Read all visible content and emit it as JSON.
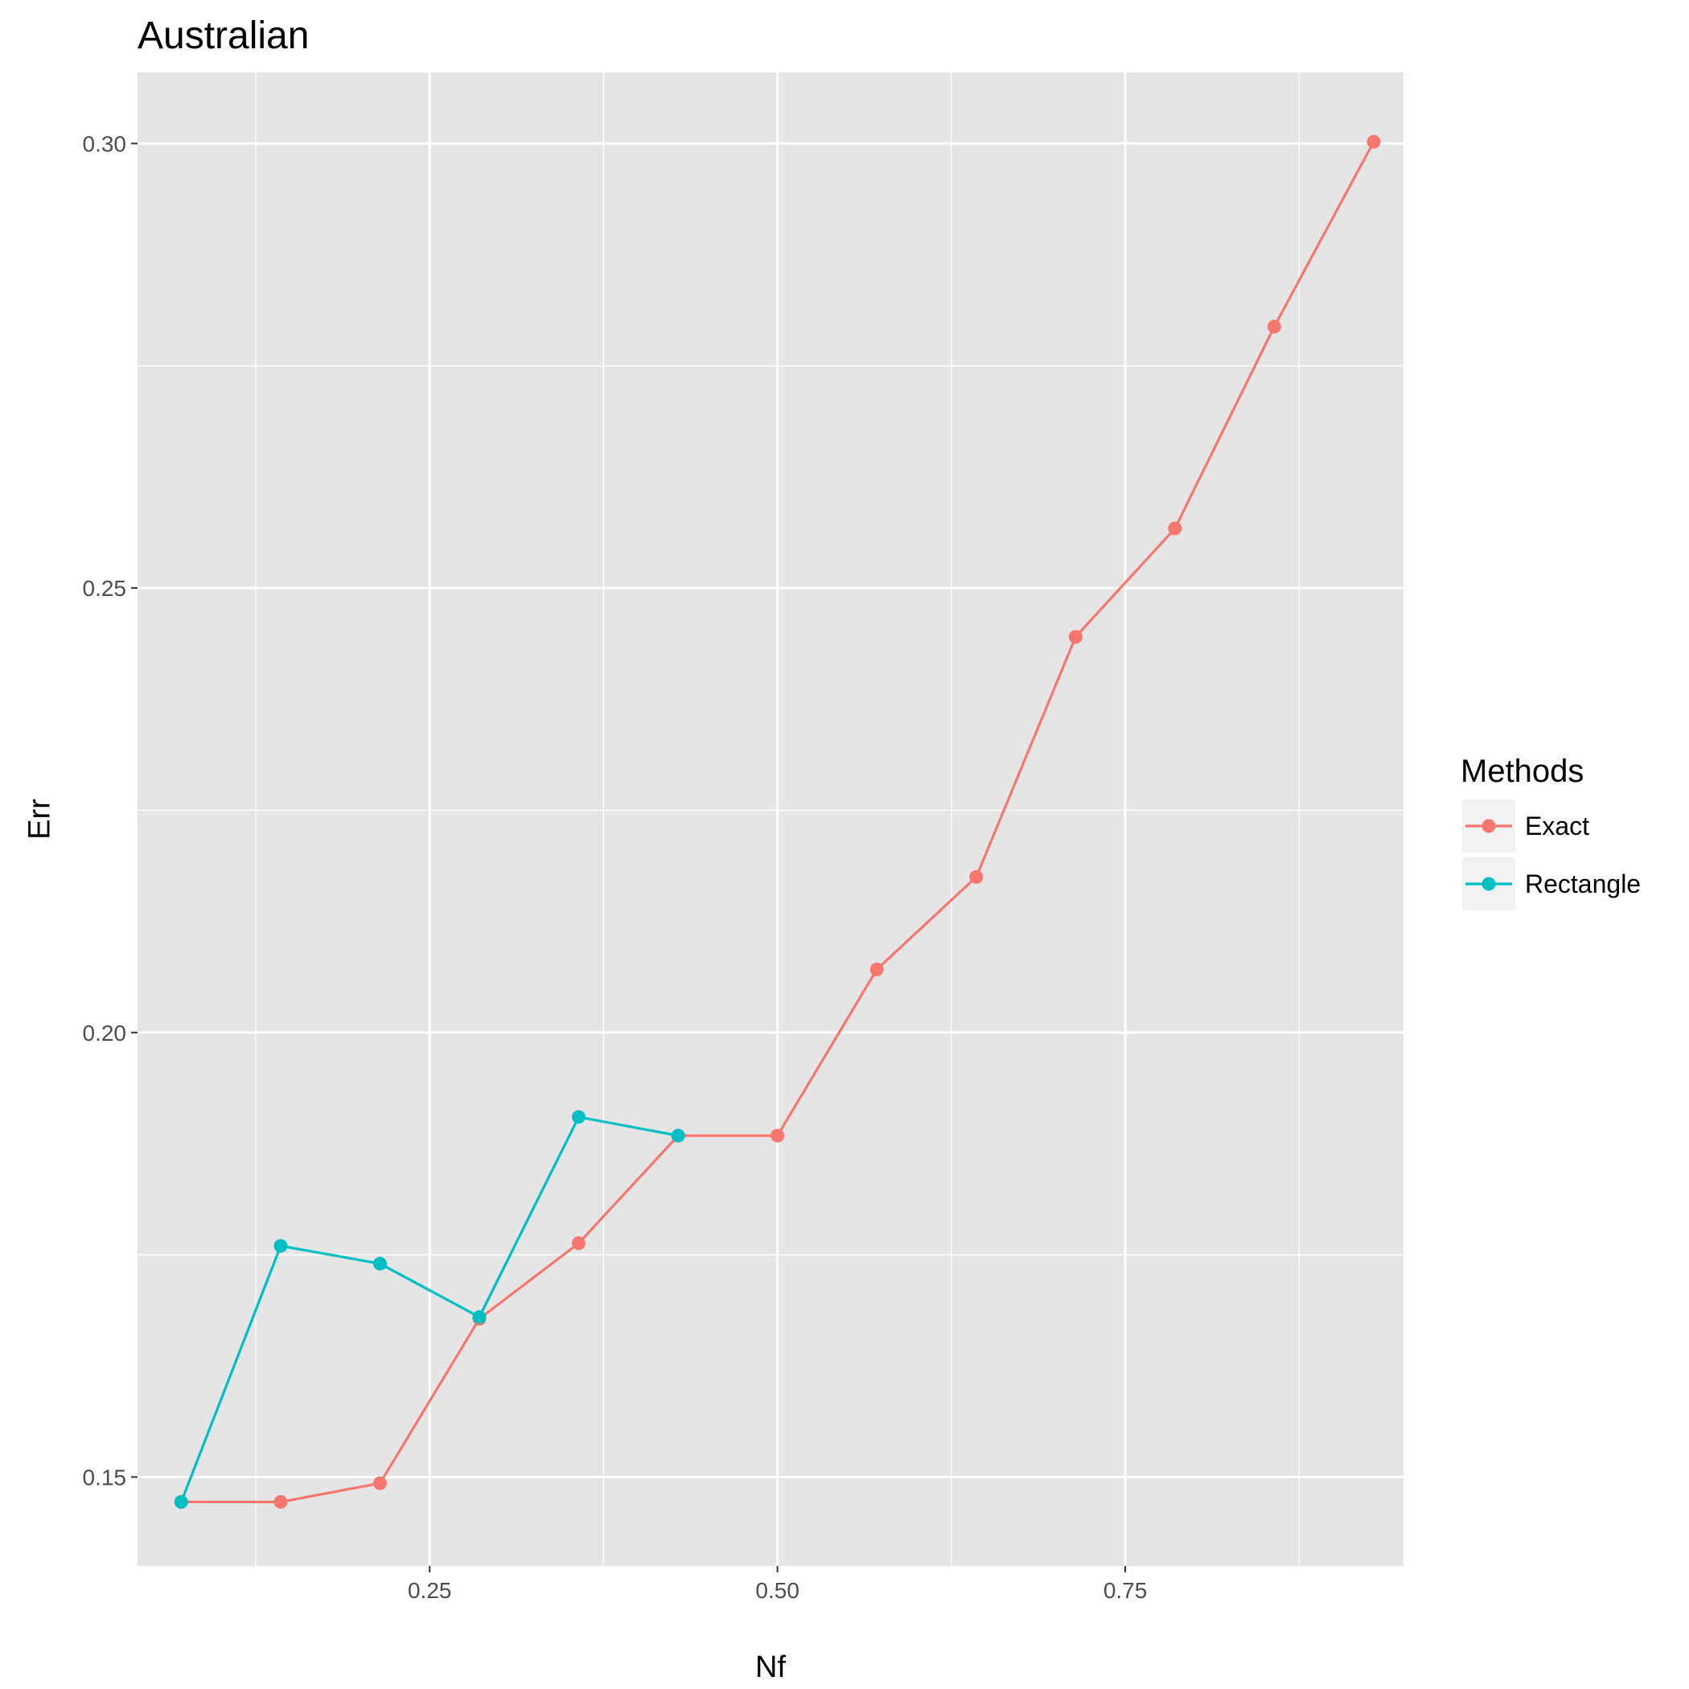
{
  "chart_data": {
    "type": "line",
    "title": "Australian",
    "xlabel": "Nf",
    "ylabel": "Err",
    "xlim": [
      0.04,
      0.95
    ],
    "ylim": [
      0.14,
      0.308
    ],
    "x_ticks": [
      0.25,
      0.5,
      0.75
    ],
    "x_tick_labels": [
      "0.25",
      "0.50",
      "0.75"
    ],
    "y_ticks": [
      0.15,
      0.2,
      0.25,
      0.3
    ],
    "y_tick_labels": [
      "0.15",
      "0.20",
      "0.25",
      "0.30"
    ],
    "grid": true,
    "legend": {
      "title": "Methods",
      "position": "right",
      "entries": [
        "Exact",
        "Rectangle"
      ]
    },
    "series": [
      {
        "name": "Exact",
        "color": "#F8766D",
        "x": [
          0.0714,
          0.1429,
          0.2143,
          0.2857,
          0.3571,
          0.4286,
          0.5,
          0.5714,
          0.6429,
          0.7143,
          0.7857,
          0.8571,
          0.9286
        ],
        "y": [
          0.1472,
          0.1472,
          0.1493,
          0.1678,
          0.1763,
          0.1884,
          0.1884,
          0.2071,
          0.2175,
          0.2445,
          0.2567,
          0.2794,
          0.3002
        ]
      },
      {
        "name": "Rectangle",
        "color": "#00BFC4",
        "x": [
          0.0714,
          0.1429,
          0.2143,
          0.2857,
          0.3571,
          0.4286
        ],
        "y": [
          0.1472,
          0.176,
          0.174,
          0.168,
          0.1905,
          0.1884
        ]
      }
    ]
  }
}
